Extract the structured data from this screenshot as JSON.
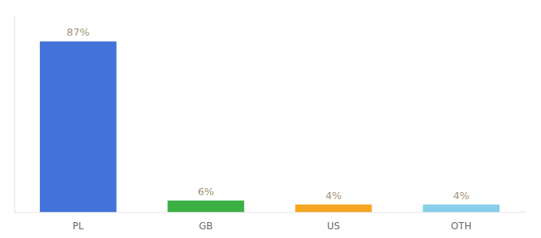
{
  "chart_data": {
    "type": "bar",
    "categories": [
      "PL",
      "GB",
      "US",
      "OTH"
    ],
    "values": [
      87,
      6,
      4,
      4
    ],
    "value_labels": [
      "87%",
      "6%",
      "4%",
      "4%"
    ],
    "colors": [
      "#4472db",
      "#3cb043",
      "#f5a623",
      "#87ceeb"
    ],
    "ylim": [
      0,
      100
    ],
    "data_labels": true,
    "tick_labels": "x",
    "grid": false
  }
}
